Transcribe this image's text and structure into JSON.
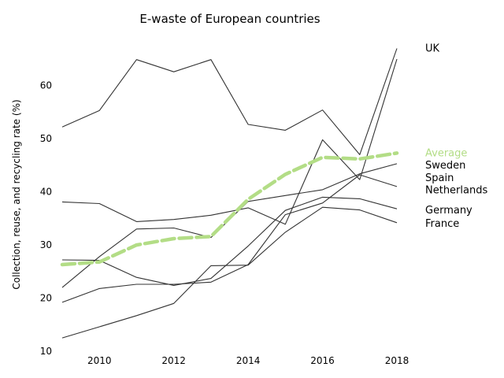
{
  "chart_data": {
    "type": "line",
    "title": "E-waste of European countries",
    "xlabel": "",
    "ylabel": "Collection, reuse, and recycling rate (%)",
    "x": [
      2009,
      2010,
      2011,
      2012,
      2013,
      2014,
      2015,
      2016,
      2017,
      2018
    ],
    "xticks": [
      "2010",
      "2012",
      "2014",
      "2016",
      "2018"
    ],
    "yticks": [
      "10",
      "20",
      "30",
      "40",
      "50",
      "60"
    ],
    "xlim": [
      2009,
      2018
    ],
    "ylim": [
      10,
      69
    ],
    "grid": false,
    "series": [
      {
        "name": "UK",
        "values": [
          52.2,
          55.3,
          64.9,
          62.6,
          64.9,
          52.7,
          51.6,
          55.4,
          47.0,
          67.0
        ],
        "color": "#333333"
      },
      {
        "name": "Sweden",
        "values": [
          38.1,
          37.8,
          34.4,
          34.8,
          35.6,
          37.0,
          33.9,
          49.8,
          42.3,
          65.0
        ],
        "color": "#333333"
      },
      {
        "name": "Spain",
        "values": [
          19.2,
          21.8,
          22.6,
          22.6,
          23.0,
          26.3,
          35.7,
          37.9,
          43.2,
          41.0
        ],
        "color": "#333333"
      },
      {
        "name": "Netherlands",
        "values": [
          22.0,
          27.8,
          33.0,
          33.2,
          31.4,
          38.2,
          39.3,
          40.4,
          43.4,
          45.3
        ],
        "color": "#333333"
      },
      {
        "name": "Germany",
        "values": [
          12.5,
          14.6,
          16.7,
          19.0,
          26.1,
          26.2,
          32.4,
          37.1,
          36.6,
          34.2
        ],
        "color": "#333333"
      },
      {
        "name": "France",
        "values": [
          27.2,
          27.1,
          23.9,
          22.4,
          23.7,
          29.8,
          36.5,
          39.0,
          38.7,
          36.8
        ],
        "color": "#333333"
      },
      {
        "name": "Average",
        "values": [
          26.3,
          26.8,
          30.0,
          31.2,
          31.6,
          38.6,
          43.3,
          46.5,
          46.2,
          47.3
        ],
        "color": "#b3dd86",
        "dashed": true
      }
    ],
    "labels": [
      {
        "text": "UK",
        "y": 67.0,
        "color": "#000000"
      },
      {
        "text": "Average",
        "y": 47.3,
        "color": "#b3dd86"
      },
      {
        "text": "Sweden",
        "y": 45.0,
        "color": "#000000"
      },
      {
        "text": "Spain",
        "y": 42.6,
        "color": "#000000"
      },
      {
        "text": "Netherlands",
        "y": 40.3,
        "color": "#000000"
      },
      {
        "text": "Germany",
        "y": 36.5,
        "color": "#000000"
      },
      {
        "text": "France",
        "y": 34.0,
        "color": "#000000"
      }
    ]
  }
}
